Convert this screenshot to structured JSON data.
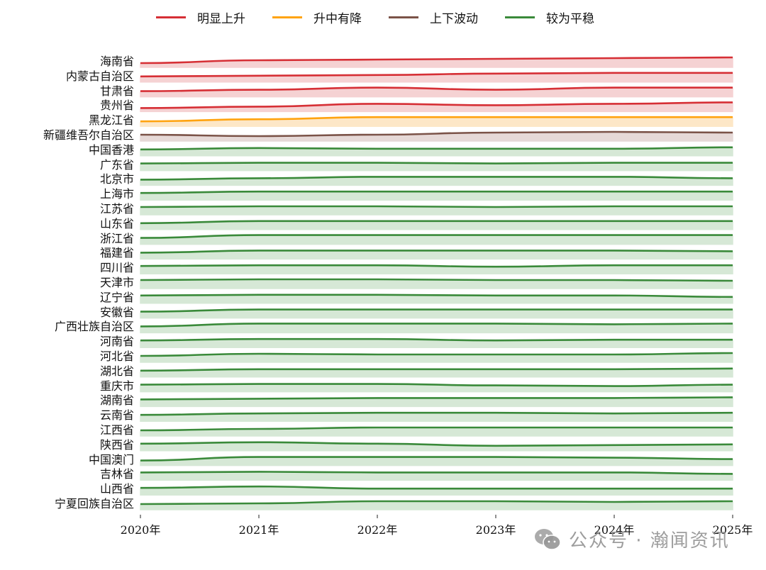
{
  "legend": [
    {
      "label": "明显上升",
      "color": "#d62f35",
      "fill": "#f5d2d3"
    },
    {
      "label": "升中有降",
      "color": "#ffa30f",
      "fill": "#fde7c7"
    },
    {
      "label": "上下波动",
      "color": "#7b5348",
      "fill": "#e6d9d7"
    },
    {
      "label": "较为平稳",
      "color": "#3a8a3a",
      "fill": "#d6e8d6"
    }
  ],
  "watermark": {
    "text": "公众号 · 瀚闻资讯",
    "icon": "wechat-icon"
  },
  "chart_data": {
    "type": "area",
    "subtype": "ridgeline",
    "title": "",
    "xlabel": "",
    "ylabel": "",
    "x": [
      "2020年",
      "2021年",
      "2022年",
      "2023年",
      "2024年",
      "2025年"
    ],
    "grid": false,
    "legend_position": "top",
    "value_unit": "relative height above ridge baseline (px-scaled, no numeric axis shown)",
    "series": [
      {
        "name": "海南省",
        "category": "明显上升",
        "values": [
          6,
          10,
          11,
          12,
          13,
          14
        ]
      },
      {
        "name": "内蒙古自治区",
        "category": "明显上升",
        "values": [
          8,
          9,
          10,
          12,
          13,
          13
        ]
      },
      {
        "name": "甘肃省",
        "category": "明显上升",
        "values": [
          8,
          10,
          13,
          10,
          13,
          13
        ]
      },
      {
        "name": "贵州省",
        "category": "明显上升",
        "values": [
          5,
          7,
          11,
          9,
          11,
          13
        ]
      },
      {
        "name": "黑龙江省",
        "category": "升中有降",
        "values": [
          7,
          10,
          13,
          13,
          13,
          13
        ]
      },
      {
        "name": "新疆维吾尔自治区",
        "category": "上下波动",
        "values": [
          9,
          7,
          9,
          12,
          13,
          12
        ]
      },
      {
        "name": "中国香港",
        "category": "较为平稳",
        "values": [
          9,
          11,
          10,
          10,
          10,
          12
        ]
      },
      {
        "name": "广东省",
        "category": "较为平稳",
        "values": [
          10,
          11,
          11,
          10,
          11,
          11
        ]
      },
      {
        "name": "北京市",
        "category": "较为平稳",
        "values": [
          8,
          10,
          12,
          12,
          12,
          10
        ]
      },
      {
        "name": "上海市",
        "category": "较为平稳",
        "values": [
          10,
          12,
          12,
          12,
          12,
          12
        ]
      },
      {
        "name": "江苏省",
        "category": "较为平稳",
        "values": [
          11,
          12,
          12,
          11,
          12,
          12
        ]
      },
      {
        "name": "山东省",
        "category": "较为平稳",
        "values": [
          9,
          12,
          12,
          12,
          12,
          12
        ]
      },
      {
        "name": "浙江省",
        "category": "较为平稳",
        "values": [
          9,
          13,
          13,
          13,
          13,
          13
        ]
      },
      {
        "name": "福建省",
        "category": "较为平稳",
        "values": [
          9,
          12,
          12,
          12,
          12,
          11
        ]
      },
      {
        "name": "四川省",
        "category": "较为平稳",
        "values": [
          11,
          12,
          12,
          10,
          12,
          12
        ]
      },
      {
        "name": "天津市",
        "category": "较为平稳",
        "values": [
          12,
          13,
          13,
          12,
          12,
          11
        ]
      },
      {
        "name": "辽宁省",
        "category": "较为平稳",
        "values": [
          11,
          12,
          12,
          11,
          11,
          9
        ]
      },
      {
        "name": "安徽省",
        "category": "较为平稳",
        "values": [
          9,
          12,
          12,
          12,
          12,
          12
        ]
      },
      {
        "name": "广西壮族自治区",
        "category": "较为平稳",
        "values": [
          9,
          13,
          13,
          13,
          12,
          13
        ]
      },
      {
        "name": "河南省",
        "category": "较为平稳",
        "values": [
          10,
          12,
          12,
          10,
          11,
          11
        ]
      },
      {
        "name": "河北省",
        "category": "较为平稳",
        "values": [
          9,
          12,
          11,
          11,
          11,
          13
        ]
      },
      {
        "name": "湖北省",
        "category": "较为平稳",
        "values": [
          9,
          11,
          11,
          11,
          11,
          12
        ]
      },
      {
        "name": "重庆市",
        "category": "较为平稳",
        "values": [
          10,
          11,
          11,
          9,
          8,
          10
        ]
      },
      {
        "name": "湖南省",
        "category": "较为平稳",
        "values": [
          10,
          11,
          12,
          12,
          12,
          13
        ]
      },
      {
        "name": "云南省",
        "category": "较为平稳",
        "values": [
          9,
          11,
          12,
          12,
          11,
          12
        ]
      },
      {
        "name": "江西省",
        "category": "较为平稳",
        "values": [
          8,
          10,
          12,
          12,
          12,
          12
        ]
      },
      {
        "name": "陕西省",
        "category": "较为平稳",
        "values": [
          10,
          12,
          10,
          7,
          8,
          9
        ]
      },
      {
        "name": "中国澳门",
        "category": "较为平稳",
        "values": [
          7,
          12,
          12,
          12,
          11,
          9
        ]
      },
      {
        "name": "吉林省",
        "category": "较为平稳",
        "values": [
          11,
          12,
          11,
          11,
          11,
          9
        ]
      },
      {
        "name": "山西省",
        "category": "较为平稳",
        "values": [
          10,
          12,
          9,
          9,
          9,
          9
        ]
      },
      {
        "name": "宁夏回族自治区",
        "category": "较为平稳",
        "values": [
          8,
          9,
          12,
          12,
          11,
          12
        ]
      }
    ]
  }
}
